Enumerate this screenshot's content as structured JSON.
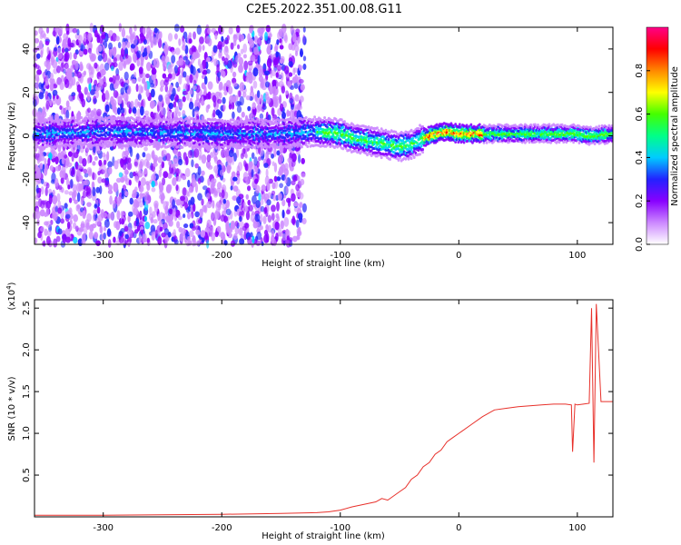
{
  "title": "C2E5.2022.351.00.08.G11",
  "chart_data": [
    {
      "type": "heatmap",
      "xlabel": "Height of straight line (km)",
      "ylabel": "Frequency (Hz)",
      "xlim": [
        -358,
        130
      ],
      "ylim": [
        -50,
        50
      ],
      "x_ticks": [
        -300,
        -200,
        -100,
        0,
        100
      ],
      "y_ticks": [
        -40,
        -20,
        0,
        20,
        40
      ],
      "colorbar": {
        "label": "Normalized spectral amplitude",
        "range": [
          0,
          1
        ],
        "ticks": [
          0.0,
          0.2,
          0.4,
          0.6,
          0.8
        ],
        "colors": [
          "#ffffff",
          "#cc88ff",
          "#8800ff",
          "#2222ff",
          "#00ccff",
          "#00ff88",
          "#44ff00",
          "#ffff00",
          "#ff8800",
          "#ff0000",
          "#ff0088"
        ]
      },
      "center_frequency_trace": {
        "x": [
          -358,
          -300,
          -200,
          -150,
          -120,
          -100,
          -90,
          -80,
          -70,
          -60,
          -50,
          -40,
          -30,
          -20,
          -10,
          0,
          20,
          50,
          100,
          110,
          130
        ],
        "y": [
          1,
          2,
          1,
          1,
          2,
          1,
          -1,
          -2,
          -3,
          -4,
          -5,
          -4,
          -1,
          1,
          2,
          1,
          1,
          1,
          1,
          0,
          1
        ]
      },
      "noise_region_xlim": [
        -358,
        -130
      ],
      "grid": false
    },
    {
      "type": "line",
      "xlabel": "Height of straight line (km)",
      "ylabel": "SNR (10 * v/v)",
      "y_multiplier_label": "(x10",
      "y_multiplier_exp": "4",
      "xlim": [
        -358,
        130
      ],
      "ylim": [
        0,
        2.6
      ],
      "x_ticks": [
        -300,
        -200,
        -100,
        0,
        100
      ],
      "y_ticks": [
        0.5,
        1.0,
        1.5,
        2.0,
        2.5
      ],
      "line_color": "#e8302a",
      "series": [
        {
          "x": [
            -358,
            -300,
            -200,
            -150,
            -120,
            -110,
            -100,
            -90,
            -80,
            -70,
            -65,
            -60,
            -50,
            -45,
            -40,
            -35,
            -30,
            -25,
            -20,
            -15,
            -10,
            -5,
            0,
            10,
            20,
            30,
            40,
            50,
            60,
            70,
            80,
            90,
            95,
            96,
            98,
            100,
            105,
            110,
            112,
            114,
            116,
            120,
            130
          ],
          "y": [
            0.02,
            0.02,
            0.03,
            0.04,
            0.05,
            0.06,
            0.08,
            0.12,
            0.15,
            0.18,
            0.22,
            0.2,
            0.3,
            0.35,
            0.45,
            0.5,
            0.6,
            0.65,
            0.75,
            0.8,
            0.9,
            0.95,
            1.0,
            1.1,
            1.2,
            1.28,
            1.3,
            1.32,
            1.33,
            1.34,
            1.35,
            1.35,
            1.34,
            0.78,
            1.35,
            1.34,
            1.35,
            1.36,
            2.5,
            0.65,
            2.55,
            1.38,
            1.38
          ]
        }
      ],
      "grid": false
    }
  ]
}
